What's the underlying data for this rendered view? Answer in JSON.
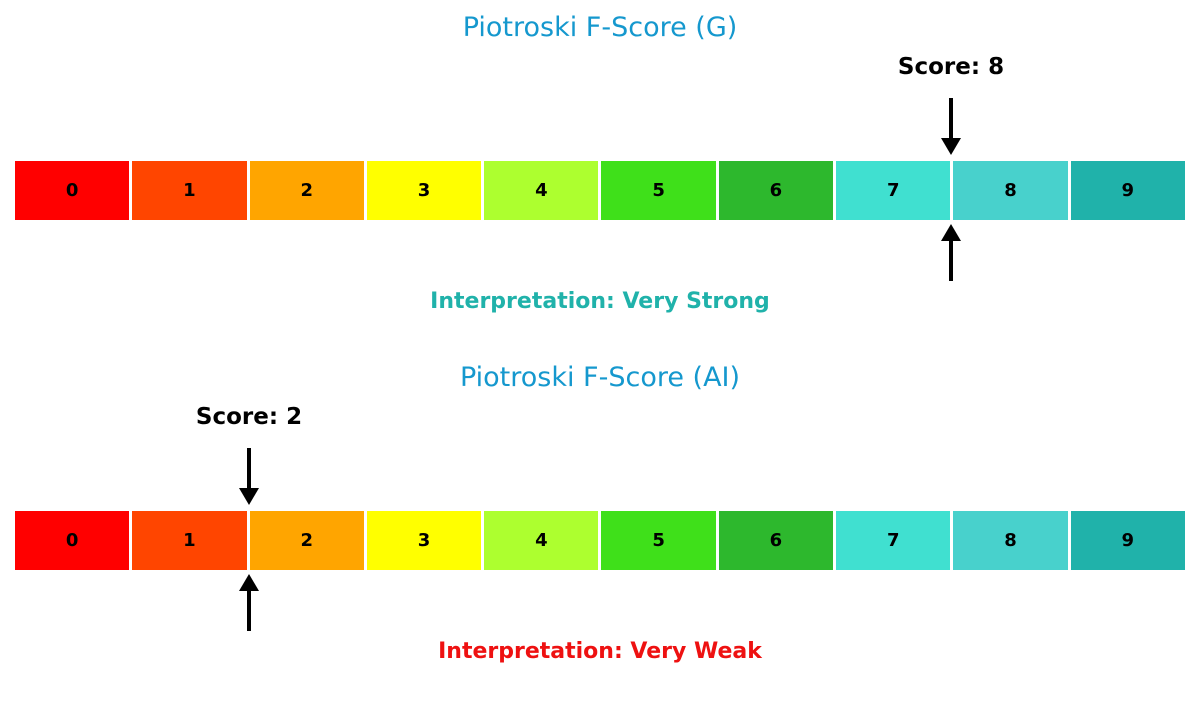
{
  "chart_data": [
    {
      "type": "bar",
      "subtype": "score-gauge",
      "title": "Piotroski F-Score (G)",
      "categories": [
        "0",
        "1",
        "2",
        "3",
        "4",
        "5",
        "6",
        "7",
        "8",
        "9"
      ],
      "segment_colors": [
        "#ff0000",
        "#ff4500",
        "#ffa500",
        "#ffff00",
        "#adff2f",
        "#3fe01a",
        "#2db82d",
        "#40e0d0",
        "#48d1cc",
        "#20b2aa"
      ],
      "xlim": [
        0,
        10
      ],
      "score": 8,
      "score_label": "Score: 8",
      "interpretation": "Interpretation: Very Strong",
      "interpretation_color": "#20b2aa"
    },
    {
      "type": "bar",
      "subtype": "score-gauge",
      "title": "Piotroski F-Score (AI)",
      "categories": [
        "0",
        "1",
        "2",
        "3",
        "4",
        "5",
        "6",
        "7",
        "8",
        "9"
      ],
      "segment_colors": [
        "#ff0000",
        "#ff4500",
        "#ffa500",
        "#ffff00",
        "#adff2f",
        "#3fe01a",
        "#2db82d",
        "#40e0d0",
        "#48d1cc",
        "#20b2aa"
      ],
      "xlim": [
        0,
        10
      ],
      "score": 2,
      "score_label": "Score: 2",
      "interpretation": "Interpretation: Very Weak",
      "interpretation_color": "#ee1111"
    }
  ],
  "style": {
    "title_color": "#1598ce",
    "arrow_color": "#000000",
    "number_color": "#000000",
    "background": "#ffffff"
  }
}
